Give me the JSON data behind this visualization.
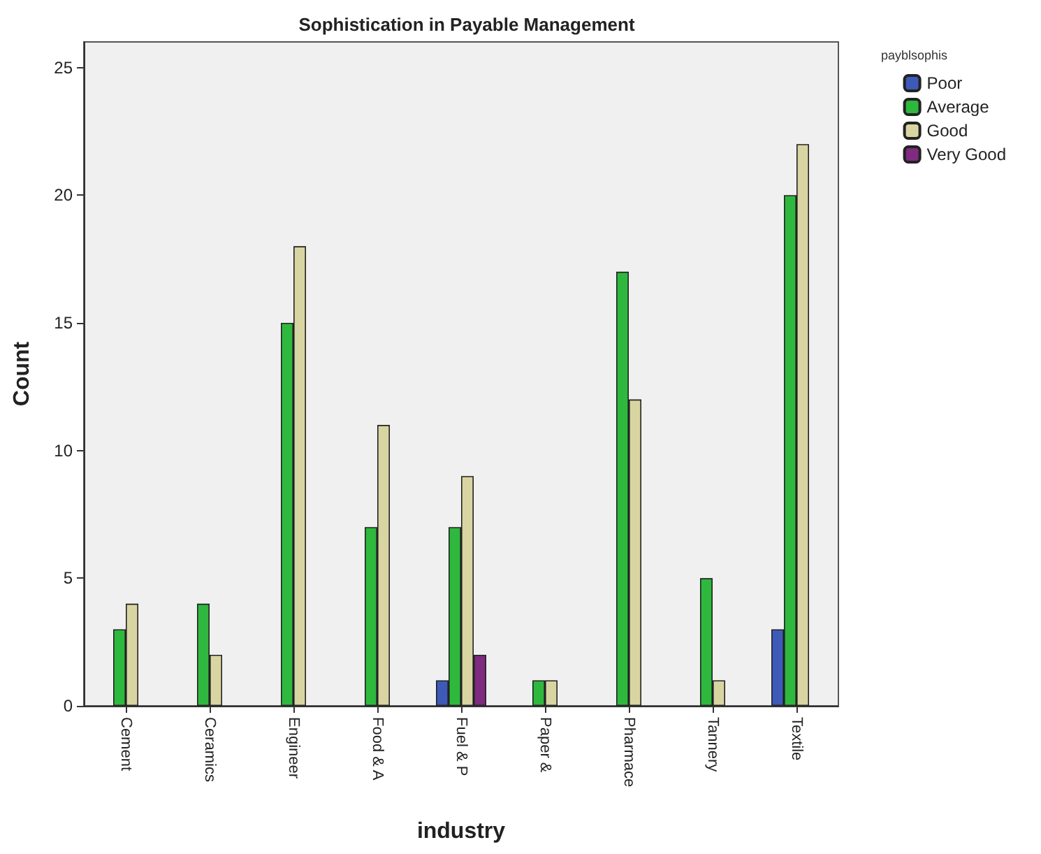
{
  "chart_data": {
    "type": "bar",
    "title": "Sophistication in Payable Management",
    "xlabel": "industry",
    "ylabel": "Count",
    "legend_title": "payblsophis",
    "categories": [
      "Cement",
      "Ceramics",
      "Engineer",
      "Food & A",
      "Fuel & P",
      "Paper &",
      "Pharmace",
      "Tannery",
      "Textile"
    ],
    "series": [
      {
        "name": "Poor",
        "color": "#3d5ab8",
        "values": [
          null,
          null,
          null,
          null,
          1,
          null,
          null,
          null,
          3
        ]
      },
      {
        "name": "Average",
        "color": "#2fb83e",
        "values": [
          3,
          4,
          15,
          7,
          7,
          1,
          17,
          5,
          20
        ]
      },
      {
        "name": "Good",
        "color": "#d9d5a2",
        "values": [
          4,
          2,
          18,
          11,
          9,
          1,
          12,
          1,
          22
        ]
      },
      {
        "name": "Very Good",
        "color": "#7e2b80",
        "values": [
          null,
          null,
          null,
          null,
          2,
          null,
          null,
          null,
          null
        ]
      }
    ],
    "ylim": [
      0,
      26
    ],
    "yticks": [
      0,
      5,
      10,
      15,
      20,
      25
    ],
    "grid": false,
    "legend": "top right"
  }
}
